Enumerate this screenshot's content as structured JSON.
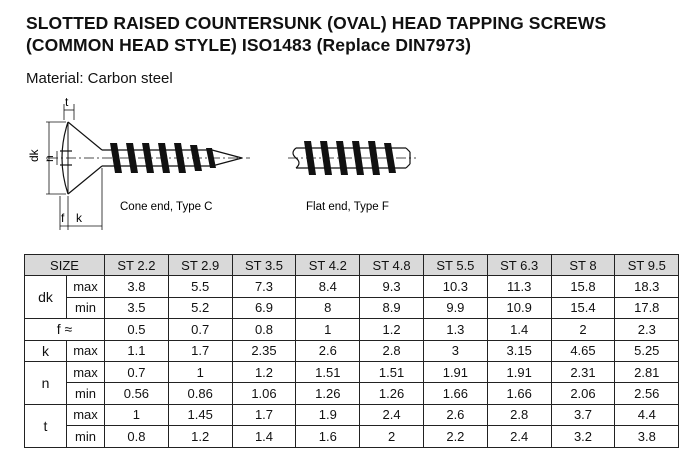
{
  "title": "SLOTTED RAISED COUNTERSUNK (OVAL) HEAD TAPPING SCREWS (COMMON HEAD STYLE) ISO1483 (Replace DIN7973)",
  "material": "Material: Carbon steel",
  "drawing": {
    "dim_t": "t",
    "dim_dk": "dk",
    "dim_n": "n",
    "dim_f": "f",
    "dim_k": "k",
    "caption_c": "Cone end, Type C",
    "caption_f": "Flat end, Type F"
  },
  "table": {
    "size_label": "SIZE",
    "sizes": [
      "ST 2.2",
      "ST 2.9",
      "ST 3.5",
      "ST 4.2",
      "ST 4.8",
      "ST 5.5",
      "ST 6.3",
      "ST 8",
      "ST 9.5"
    ],
    "dk": {
      "label": "dk",
      "max": {
        "label": "max",
        "values": [
          "3.8",
          "5.5",
          "7.3",
          "8.4",
          "9.3",
          "10.3",
          "11.3",
          "15.8",
          "18.3"
        ]
      },
      "min": {
        "label": "min",
        "values": [
          "3.5",
          "5.2",
          "6.9",
          "8",
          "8.9",
          "9.9",
          "10.9",
          "15.4",
          "17.8"
        ]
      }
    },
    "f": {
      "label": "f ≈",
      "values": [
        "0.5",
        "0.7",
        "0.8",
        "1",
        "1.2",
        "1.3",
        "1.4",
        "2",
        "2.3"
      ]
    },
    "k": {
      "label": "k",
      "max": {
        "label": "max",
        "values": [
          "1.1",
          "1.7",
          "2.35",
          "2.6",
          "2.8",
          "3",
          "3.15",
          "4.65",
          "5.25"
        ]
      }
    },
    "n": {
      "label": "n",
      "max": {
        "label": "max",
        "values": [
          "0.7",
          "1",
          "1.2",
          "1.51",
          "1.51",
          "1.91",
          "1.91",
          "2.31",
          "2.81"
        ]
      },
      "min": {
        "label": "min",
        "values": [
          "0.56",
          "0.86",
          "1.06",
          "1.26",
          "1.26",
          "1.66",
          "1.66",
          "2.06",
          "2.56"
        ]
      }
    },
    "t": {
      "label": "t",
      "max": {
        "label": "max",
        "values": [
          "1",
          "1.45",
          "1.7",
          "1.9",
          "2.4",
          "2.6",
          "2.8",
          "3.7",
          "4.4"
        ]
      },
      "min": {
        "label": "min",
        "values": [
          "0.8",
          "1.2",
          "1.4",
          "1.6",
          "2",
          "2.2",
          "2.4",
          "3.2",
          "3.8"
        ]
      }
    }
  }
}
